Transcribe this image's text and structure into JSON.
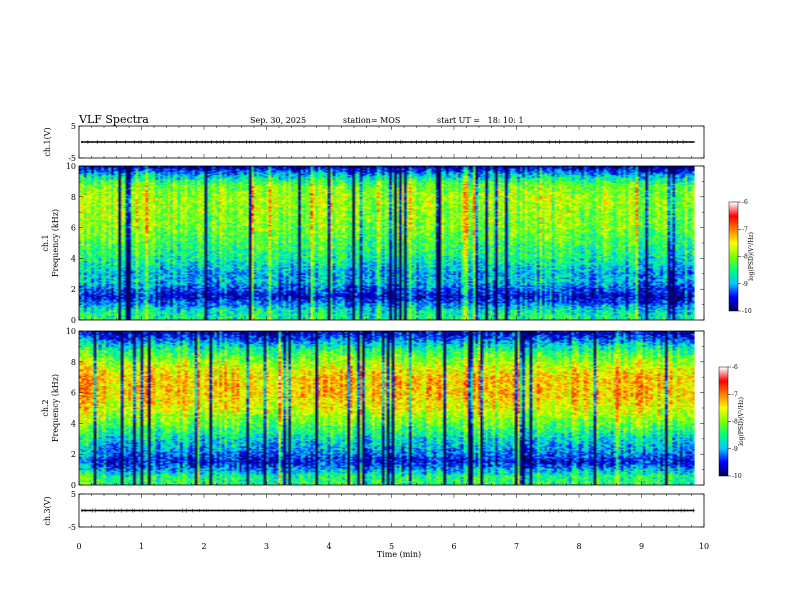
{
  "header": {
    "title": "VLF Spectra",
    "date": "Sep. 30, 2025",
    "station": "station= MOS",
    "start": "start UT =   18: 10: 1"
  },
  "chart_data": [
    {
      "type": "line",
      "panel": "ch1-waveform",
      "ylabel": "ch.1(V)",
      "ylim": [
        -5,
        5
      ],
      "yticks": [
        "5",
        "-5"
      ],
      "xlim": [
        0,
        10
      ],
      "trace_level": 0,
      "trace_end": 9.85
    },
    {
      "type": "heatmap",
      "panel": "ch1-spectrogram",
      "ylabel_line1": "ch.1",
      "ylabel_line2": "Frequency (kHz)",
      "ylim": [
        0,
        10
      ],
      "yticks": [
        "0",
        "2",
        "4",
        "6",
        "8",
        "10"
      ],
      "xlim": [
        0,
        9.85
      ],
      "colorbar": {
        "label": "log(PSD)(V²/Hz)",
        "ticks": [
          "-6",
          "-7",
          "-8",
          "-9",
          "-10"
        ],
        "range": [
          -10,
          -6
        ]
      },
      "profile_freq": [
        0,
        0.5,
        1.2,
        1.5,
        2.0,
        2.5,
        3,
        4,
        5,
        6,
        7,
        8,
        8.8,
        9.3,
        10
      ],
      "profile_level": [
        -8.3,
        -8.5,
        -9.3,
        -9.6,
        -9.2,
        -8.8,
        -8.9,
        -8.4,
        -8.1,
        -7.8,
        -7.7,
        -7.6,
        -7.9,
        -8.6,
        -9.8
      ]
    },
    {
      "type": "heatmap",
      "panel": "ch2-spectrogram",
      "ylabel_line1": "ch.2",
      "ylabel_line2": "Frequency (kHz)",
      "ylim": [
        0,
        10
      ],
      "yticks": [
        "0",
        "2",
        "4",
        "6",
        "8",
        "10"
      ],
      "xlim": [
        0,
        9.85
      ],
      "colorbar": {
        "label": "log(PSD)(V²/Hz)",
        "ticks": [
          "-6",
          "-7",
          "-8",
          "-9",
          "-10"
        ],
        "range": [
          -10,
          -6
        ]
      },
      "profile_freq": [
        0,
        0.5,
        1.2,
        1.5,
        2.0,
        3,
        4,
        5,
        6,
        7,
        8,
        9,
        9.5,
        10
      ],
      "profile_level": [
        -8.2,
        -8.3,
        -9.2,
        -9.5,
        -9.1,
        -8.6,
        -7.9,
        -7.3,
        -7.0,
        -7.0,
        -7.6,
        -8.5,
        -9.2,
        -9.7
      ]
    },
    {
      "type": "line",
      "panel": "ch3-waveform",
      "ylabel": "ch.3(V)",
      "ylim": [
        -5,
        5
      ],
      "yticks": [
        "5",
        "-5"
      ],
      "xlim": [
        0,
        10
      ],
      "trace_level": 0,
      "trace_end": 9.85
    }
  ],
  "xaxis": {
    "label": "Time (min)",
    "ticks": [
      "0",
      "1",
      "2",
      "3",
      "4",
      "5",
      "6",
      "7",
      "8",
      "9",
      "10"
    ],
    "range": [
      0,
      10
    ]
  },
  "colors": {
    "colormap": [
      "#000060",
      "#0000ff",
      "#00c8ff",
      "#00ff80",
      "#80ff00",
      "#ffff00",
      "#ff8000",
      "#ff0000",
      "#ffffff"
    ]
  }
}
